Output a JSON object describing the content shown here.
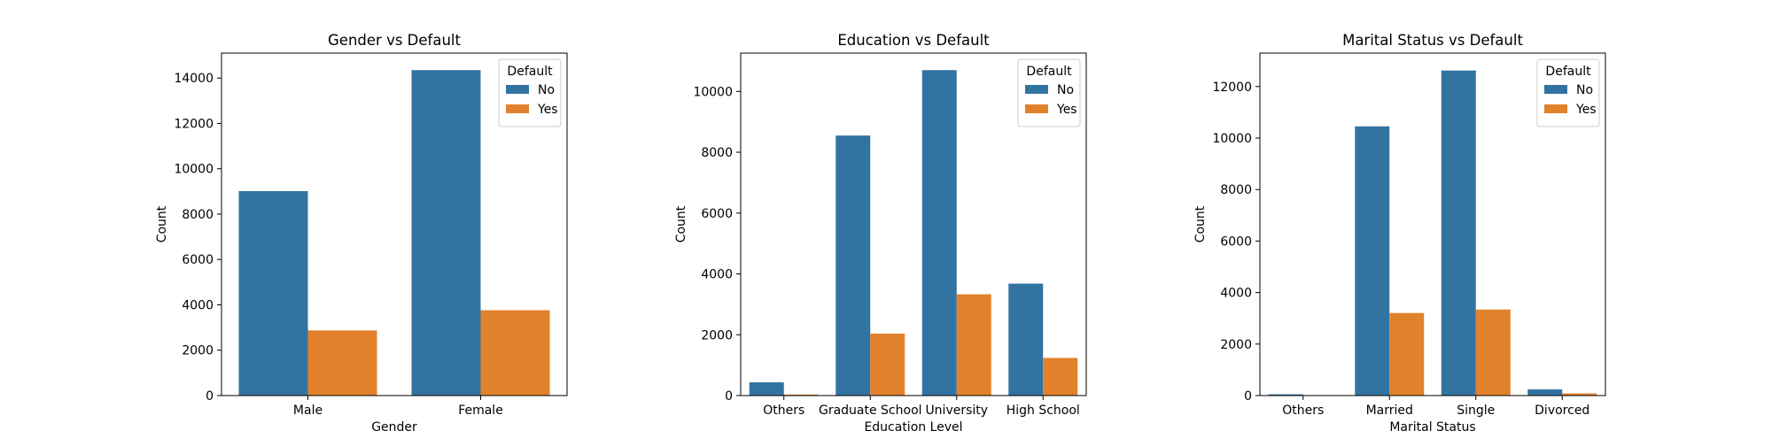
{
  "chart_data": [
    {
      "type": "bar",
      "title": "Gender vs Default",
      "xlabel": "Gender",
      "ylabel": "Count",
      "categories": [
        "Male",
        "Female"
      ],
      "ylim": [
        0,
        15100
      ],
      "yticks": [
        0,
        2000,
        4000,
        6000,
        8000,
        10000,
        12000,
        14000
      ],
      "legend_title": "Default",
      "legend_position": "top-right",
      "grid": false,
      "series": [
        {
          "name": "No",
          "color": "#3274a1",
          "values": [
            9015,
            14349
          ]
        },
        {
          "name": "Yes",
          "color": "#e1812c",
          "values": [
            2873,
            3763
          ]
        }
      ]
    },
    {
      "type": "bar",
      "title": "Education vs Default",
      "xlabel": "Education Level",
      "ylabel": "Count",
      "categories": [
        "Others",
        "Graduate School",
        "University",
        "High School"
      ],
      "ylim": [
        0,
        11260
      ],
      "yticks": [
        0,
        2000,
        4000,
        6000,
        8000,
        10000
      ],
      "legend_title": "Default",
      "legend_position": "top-right",
      "grid": false,
      "series": [
        {
          "name": "No",
          "color": "#3274a1",
          "values": [
            435,
            8549,
            10700,
            3680
          ]
        },
        {
          "name": "Yes",
          "color": "#e1812c",
          "values": [
            33,
            2036,
            3330,
            1237
          ]
        }
      ]
    },
    {
      "type": "bar",
      "title": "Marital Status vs Default",
      "xlabel": "Marital Status",
      "ylabel": "Count",
      "categories": [
        "Others",
        "Married",
        "Single",
        "Divorced"
      ],
      "ylim": [
        0,
        13300
      ],
      "yticks": [
        0,
        2000,
        4000,
        6000,
        8000,
        10000,
        12000
      ],
      "legend_title": "Default",
      "legend_position": "top-right",
      "grid": false,
      "series": [
        {
          "name": "No",
          "color": "#3274a1",
          "values": [
            49,
            10453,
            12623,
            239
          ]
        },
        {
          "name": "Yes",
          "color": "#e1812c",
          "values": [
            5,
            3206,
            3341,
            84
          ]
        }
      ]
    }
  ]
}
